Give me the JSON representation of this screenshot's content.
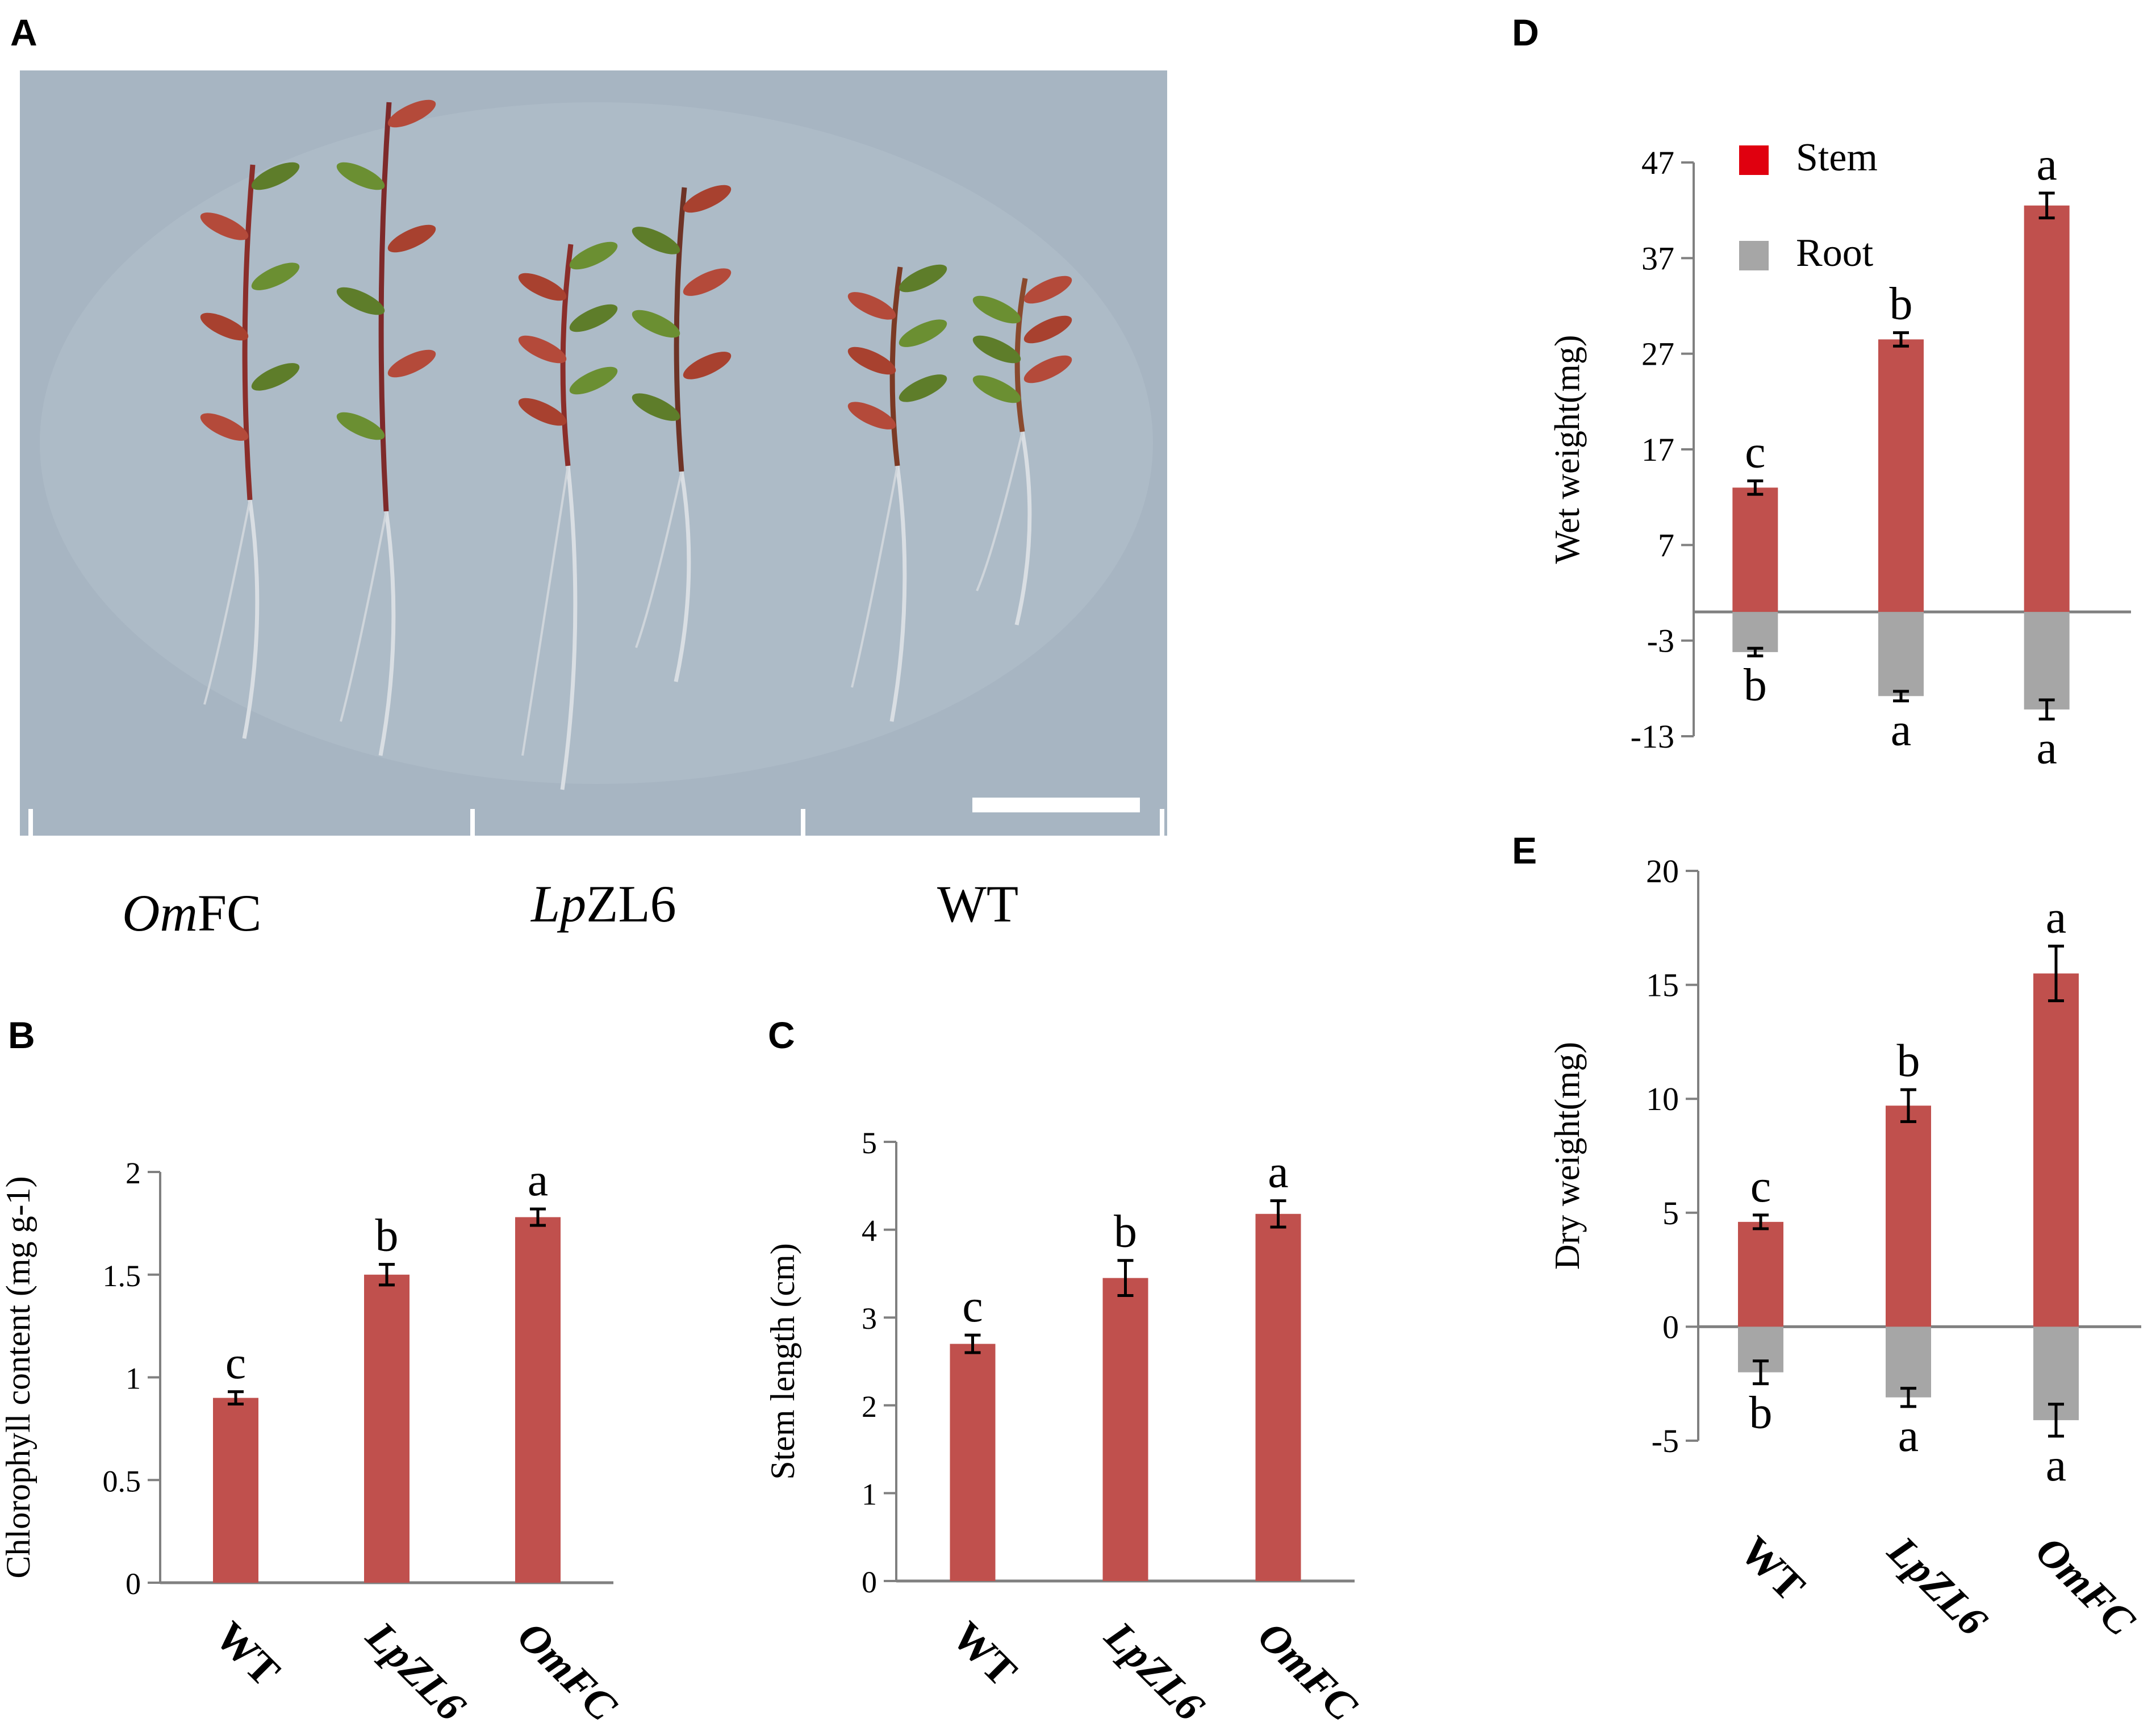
{
  "panels": {
    "A": {
      "letter": "A",
      "photo_labels": [
        {
          "italic": "Om",
          "roman": "FC"
        },
        {
          "italic": "Lp",
          "roman": "ZL6"
        },
        {
          "italic": "",
          "roman": "WT"
        }
      ]
    },
    "B": {
      "letter": "B"
    },
    "C": {
      "letter": "C"
    },
    "D": {
      "letter": "D"
    },
    "E": {
      "letter": "E"
    }
  },
  "colors": {
    "stem": "#C0504D",
    "root": "#A6A6A6",
    "axis": "#808080",
    "legend_stem": "#E0000F",
    "legend_root": "#A6A6A6",
    "photo_bg": "#A7B5C2"
  },
  "chart_data": [
    {
      "id": "B",
      "type": "bar",
      "categories": [
        "WT",
        "LpZL6",
        "OmFC"
      ],
      "values": [
        0.9,
        1.5,
        1.78
      ],
      "errors": [
        0.03,
        0.05,
        0.04
      ],
      "letters": [
        "c",
        "b",
        "a"
      ],
      "ylabel": "Chlorophyll content (mg g-1)",
      "ylim": [
        0,
        2
      ],
      "yticks": [
        "0",
        "0.5",
        "1",
        "1.5",
        "2"
      ]
    },
    {
      "id": "C",
      "type": "bar",
      "categories": [
        "WT",
        "LpZL6",
        "OmFC"
      ],
      "values": [
        2.7,
        3.45,
        4.18
      ],
      "errors": [
        0.1,
        0.2,
        0.15
      ],
      "letters": [
        "c",
        "b",
        "a"
      ],
      "ylabel": "Stem length (cm)",
      "ylim": [
        0,
        5
      ],
      "yticks": [
        "0",
        "1",
        "2",
        "3",
        "4",
        "5"
      ]
    },
    {
      "id": "D",
      "type": "bar",
      "categories": [
        "WT",
        "LpZL6",
        "OmFC"
      ],
      "ylabel": "Wet weight(mg)",
      "ylim": [
        -13,
        47
      ],
      "yticks": [
        "-13",
        "-3",
        "7",
        "17",
        "27",
        "37",
        "47"
      ],
      "legend": [
        "Stem",
        "Root"
      ],
      "legend_position": "top-left",
      "series": [
        {
          "name": "Stem",
          "values": [
            13.0,
            28.5,
            42.5
          ],
          "errors": [
            0.7,
            0.7,
            1.3
          ],
          "letters": [
            "c",
            "b",
            "a"
          ]
        },
        {
          "name": "Root",
          "values": [
            -4.2,
            -8.8,
            -10.2
          ],
          "errors": [
            0.4,
            0.5,
            1.0
          ],
          "letters": [
            "b",
            "a",
            "a"
          ]
        }
      ]
    },
    {
      "id": "E",
      "type": "bar",
      "categories": [
        "WT",
        "LpZL6",
        "OmFC"
      ],
      "ylabel": "Dry weight(mg)",
      "ylim": [
        -5,
        20
      ],
      "yticks": [
        "-5",
        "0",
        "5",
        "10",
        "15",
        "20"
      ],
      "series": [
        {
          "name": "Stem",
          "values": [
            4.6,
            9.7,
            15.5
          ],
          "errors": [
            0.3,
            0.7,
            1.2
          ],
          "letters": [
            "c",
            "b",
            "a"
          ]
        },
        {
          "name": "Root",
          "values": [
            -2.0,
            -3.1,
            -4.1
          ],
          "errors": [
            0.5,
            0.4,
            0.7
          ],
          "letters": [
            "b",
            "a",
            "a"
          ]
        }
      ]
    }
  ]
}
